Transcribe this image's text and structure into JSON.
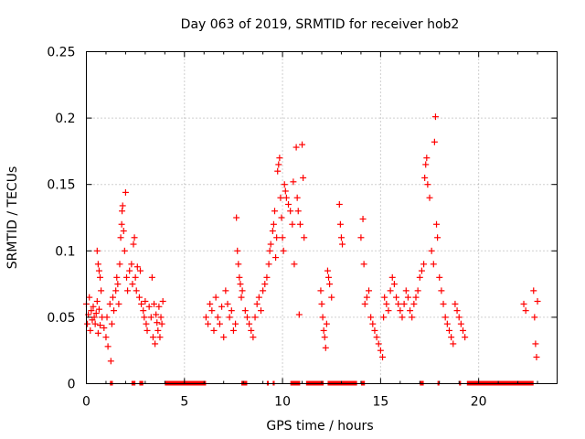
{
  "chart_data": {
    "type": "scatter",
    "title": "Day 063 of 2019, SRMTID for receiver hob2",
    "xlabel": "GPS time / hours",
    "ylabel": "SRMTID / TECUs",
    "xlim": [
      0,
      24
    ],
    "ylim": [
      0,
      0.25
    ],
    "xticks": [
      0,
      5,
      10,
      15,
      20
    ],
    "xtick_labels": [
      "0",
      "5",
      "10",
      "15",
      "20"
    ],
    "yticks": [
      0,
      0.05,
      0.1,
      0.15,
      0.2,
      0.25
    ],
    "ytick_labels": [
      "0",
      "0.05",
      "0.1",
      "0.15",
      "0.2",
      "0.25"
    ],
    "grid": true,
    "marker": "+",
    "color": "#ff0000",
    "series": [
      {
        "name": "SRMTID",
        "points": [
          [
            0.0,
            0.06
          ],
          [
            0.05,
            0.045
          ],
          [
            0.1,
            0.052
          ],
          [
            0.15,
            0.065
          ],
          [
            0.2,
            0.04
          ],
          [
            0.25,
            0.055
          ],
          [
            0.3,
            0.048
          ],
          [
            0.35,
            0.058
          ],
          [
            0.4,
            0.05
          ],
          [
            0.45,
            0.045
          ],
          [
            0.5,
            0.053
          ],
          [
            0.55,
            0.062
          ],
          [
            0.6,
            0.038
          ],
          [
            0.65,
            0.056
          ],
          [
            0.7,
            0.044
          ],
          [
            0.75,
            0.07
          ],
          [
            0.8,
            0.05
          ],
          [
            0.55,
            0.1
          ],
          [
            0.6,
            0.09
          ],
          [
            0.65,
            0.085
          ],
          [
            0.7,
            0.08
          ],
          [
            0.9,
            0.042
          ],
          [
            1.0,
            0.035
          ],
          [
            1.05,
            0.05
          ],
          [
            1.1,
            0.028
          ],
          [
            1.2,
            0.06
          ],
          [
            1.25,
            0.017
          ],
          [
            1.3,
            0.045
          ],
          [
            1.35,
            0.065
          ],
          [
            1.4,
            0.055
          ],
          [
            1.5,
            0.07
          ],
          [
            1.55,
            0.08
          ],
          [
            1.6,
            0.075
          ],
          [
            1.65,
            0.06
          ],
          [
            1.7,
            0.09
          ],
          [
            1.75,
            0.11
          ],
          [
            1.8,
            0.12
          ],
          [
            1.82,
            0.13
          ],
          [
            1.85,
            0.134
          ],
          [
            1.9,
            0.115
          ],
          [
            1.95,
            0.1
          ],
          [
            2.0,
            0.144
          ],
          [
            2.05,
            0.08
          ],
          [
            2.1,
            0.07
          ],
          [
            2.2,
            0.085
          ],
          [
            2.3,
            0.09
          ],
          [
            2.35,
            0.075
          ],
          [
            2.4,
            0.105
          ],
          [
            2.45,
            0.11
          ],
          [
            2.5,
            0.08
          ],
          [
            2.55,
            0.07
          ],
          [
            2.6,
            0.088
          ],
          [
            2.7,
            0.065
          ],
          [
            2.75,
            0.085
          ],
          [
            2.8,
            0.06
          ],
          [
            2.9,
            0.055
          ],
          [
            2.95,
            0.05
          ],
          [
            3.0,
            0.062
          ],
          [
            3.05,
            0.045
          ],
          [
            3.1,
            0.04
          ],
          [
            3.2,
            0.058
          ],
          [
            3.3,
            0.05
          ],
          [
            3.35,
            0.08
          ],
          [
            3.4,
            0.035
          ],
          [
            3.45,
            0.06
          ],
          [
            3.5,
            0.03
          ],
          [
            3.55,
            0.052
          ],
          [
            3.6,
            0.046
          ],
          [
            3.65,
            0.04
          ],
          [
            3.7,
            0.058
          ],
          [
            3.75,
            0.035
          ],
          [
            3.8,
            0.05
          ],
          [
            3.85,
            0.045
          ],
          [
            3.9,
            0.062
          ],
          [
            6.1,
            0.05
          ],
          [
            6.2,
            0.045
          ],
          [
            6.3,
            0.06
          ],
          [
            6.4,
            0.055
          ],
          [
            6.5,
            0.04
          ],
          [
            6.6,
            0.065
          ],
          [
            6.7,
            0.05
          ],
          [
            6.8,
            0.045
          ],
          [
            6.9,
            0.058
          ],
          [
            7.0,
            0.035
          ],
          [
            7.1,
            0.07
          ],
          [
            7.2,
            0.06
          ],
          [
            7.3,
            0.05
          ],
          [
            7.4,
            0.055
          ],
          [
            7.5,
            0.04
          ],
          [
            7.6,
            0.045
          ],
          [
            7.65,
            0.125
          ],
          [
            7.7,
            0.1
          ],
          [
            7.75,
            0.09
          ],
          [
            7.8,
            0.08
          ],
          [
            7.85,
            0.075
          ],
          [
            7.9,
            0.065
          ],
          [
            7.95,
            0.07
          ],
          [
            8.1,
            0.055
          ],
          [
            8.2,
            0.05
          ],
          [
            8.3,
            0.045
          ],
          [
            8.4,
            0.04
          ],
          [
            8.5,
            0.035
          ],
          [
            8.6,
            0.05
          ],
          [
            8.7,
            0.06
          ],
          [
            8.8,
            0.065
          ],
          [
            8.9,
            0.055
          ],
          [
            9.0,
            0.07
          ],
          [
            9.1,
            0.075
          ],
          [
            9.2,
            0.08
          ],
          [
            9.3,
            0.09
          ],
          [
            9.35,
            0.1
          ],
          [
            9.4,
            0.105
          ],
          [
            9.5,
            0.115
          ],
          [
            9.55,
            0.12
          ],
          [
            9.6,
            0.13
          ],
          [
            9.65,
            0.095
          ],
          [
            9.7,
            0.11
          ],
          [
            9.75,
            0.16
          ],
          [
            9.8,
            0.165
          ],
          [
            9.85,
            0.17
          ],
          [
            9.9,
            0.14
          ],
          [
            9.95,
            0.125
          ],
          [
            10.0,
            0.11
          ],
          [
            10.05,
            0.1
          ],
          [
            10.1,
            0.15
          ],
          [
            10.15,
            0.145
          ],
          [
            10.2,
            0.14
          ],
          [
            10.3,
            0.135
          ],
          [
            10.4,
            0.13
          ],
          [
            10.5,
            0.12
          ],
          [
            10.55,
            0.152
          ],
          [
            10.6,
            0.09
          ],
          [
            10.7,
            0.178
          ],
          [
            10.75,
            0.14
          ],
          [
            10.8,
            0.13
          ],
          [
            10.85,
            0.052
          ],
          [
            10.9,
            0.12
          ],
          [
            11.0,
            0.18
          ],
          [
            11.05,
            0.155
          ],
          [
            11.1,
            0.11
          ],
          [
            11.95,
            0.07
          ],
          [
            12.0,
            0.06
          ],
          [
            12.05,
            0.05
          ],
          [
            12.1,
            0.04
          ],
          [
            12.15,
            0.035
          ],
          [
            12.2,
            0.027
          ],
          [
            12.25,
            0.045
          ],
          [
            12.3,
            0.085
          ],
          [
            12.35,
            0.08
          ],
          [
            12.4,
            0.075
          ],
          [
            12.5,
            0.065
          ],
          [
            12.9,
            0.135
          ],
          [
            12.95,
            0.12
          ],
          [
            13.0,
            0.11
          ],
          [
            13.05,
            0.105
          ],
          [
            14.0,
            0.11
          ],
          [
            14.1,
            0.124
          ],
          [
            14.15,
            0.09
          ],
          [
            14.2,
            0.06
          ],
          [
            14.3,
            0.065
          ],
          [
            14.4,
            0.07
          ],
          [
            14.5,
            0.05
          ],
          [
            14.6,
            0.045
          ],
          [
            14.7,
            0.04
          ],
          [
            14.8,
            0.035
          ],
          [
            14.9,
            0.03
          ],
          [
            15.0,
            0.025
          ],
          [
            15.1,
            0.02
          ],
          [
            15.15,
            0.05
          ],
          [
            15.2,
            0.065
          ],
          [
            15.3,
            0.06
          ],
          [
            15.4,
            0.055
          ],
          [
            15.5,
            0.07
          ],
          [
            15.6,
            0.08
          ],
          [
            15.7,
            0.075
          ],
          [
            15.8,
            0.065
          ],
          [
            15.9,
            0.06
          ],
          [
            16.0,
            0.055
          ],
          [
            16.1,
            0.05
          ],
          [
            16.2,
            0.06
          ],
          [
            16.3,
            0.07
          ],
          [
            16.4,
            0.065
          ],
          [
            16.5,
            0.055
          ],
          [
            16.6,
            0.05
          ],
          [
            16.7,
            0.06
          ],
          [
            16.8,
            0.065
          ],
          [
            16.9,
            0.07
          ],
          [
            17.0,
            0.08
          ],
          [
            17.1,
            0.085
          ],
          [
            17.2,
            0.09
          ],
          [
            17.25,
            0.155
          ],
          [
            17.3,
            0.165
          ],
          [
            17.35,
            0.17
          ],
          [
            17.4,
            0.15
          ],
          [
            17.5,
            0.14
          ],
          [
            17.6,
            0.1
          ],
          [
            17.7,
            0.09
          ],
          [
            17.75,
            0.182
          ],
          [
            17.8,
            0.201
          ],
          [
            17.85,
            0.12
          ],
          [
            17.9,
            0.11
          ],
          [
            18.0,
            0.08
          ],
          [
            18.1,
            0.07
          ],
          [
            18.2,
            0.06
          ],
          [
            18.3,
            0.05
          ],
          [
            18.4,
            0.045
          ],
          [
            18.5,
            0.04
          ],
          [
            18.6,
            0.035
          ],
          [
            18.7,
            0.03
          ],
          [
            18.8,
            0.06
          ],
          [
            18.9,
            0.055
          ],
          [
            19.0,
            0.05
          ],
          [
            19.1,
            0.045
          ],
          [
            19.2,
            0.04
          ],
          [
            19.3,
            0.035
          ],
          [
            22.3,
            0.06
          ],
          [
            22.4,
            0.055
          ],
          [
            22.8,
            0.07
          ],
          [
            22.85,
            0.05
          ],
          [
            22.9,
            0.03
          ],
          [
            22.95,
            0.02
          ],
          [
            23.0,
            0.062
          ]
        ]
      }
    ],
    "zero_bars_x": [
      [
        1.2,
        1.35
      ],
      [
        2.3,
        2.5
      ],
      [
        2.7,
        2.9
      ],
      [
        4.0,
        6.1
      ],
      [
        7.9,
        8.2
      ],
      [
        9.2,
        9.3
      ],
      [
        9.5,
        9.6
      ],
      [
        10.4,
        10.9
      ],
      [
        11.2,
        12.1
      ],
      [
        12.3,
        13.8
      ],
      [
        14.0,
        14.2
      ],
      [
        17.0,
        17.2
      ],
      [
        17.9,
        18.0
      ],
      [
        19.0,
        19.1
      ],
      [
        19.4,
        22.8
      ]
    ]
  }
}
